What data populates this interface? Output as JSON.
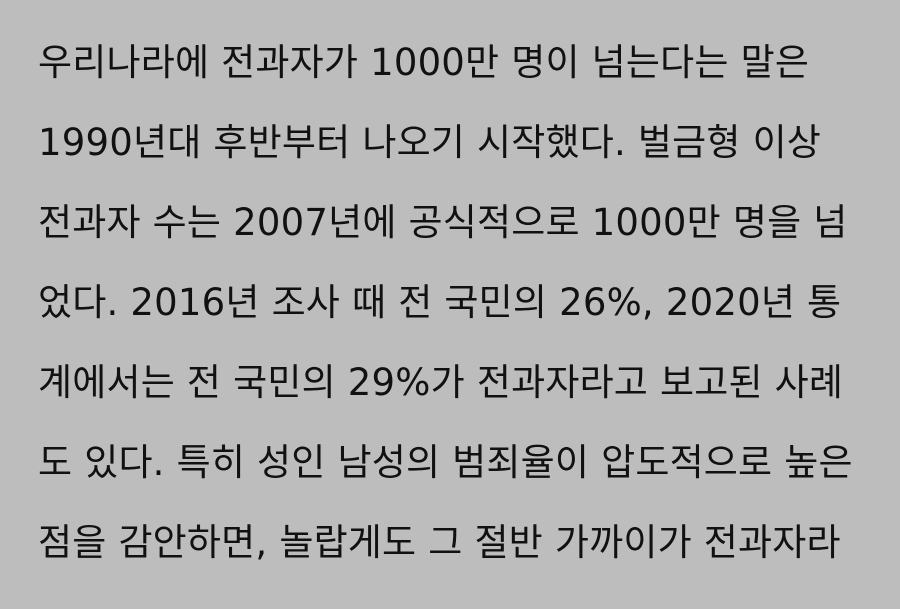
{
  "document": {
    "lines": [
      "우리나라에 전과자가 1000만 명이 넘는다는 말은",
      "1990년대 후반부터 나오기 시작했다. 벌금형 이상",
      "전과자 수는 2007년에 공식적으로 1000만 명을 넘",
      "었다. 2016년 조사 때 전 국민의 26%, 2020년 통",
      "계에서는 전 국민의 29%가 전과자라고 보고된 사례",
      "도 있다. 특히 성인 남성의 범죄율이 압도적으로 높은",
      "점을 감안하면, 놀랍게도 그 절반 가까이가 전과자라"
    ]
  },
  "colors": {
    "background": "#bdbdbd",
    "text": "#111111"
  }
}
